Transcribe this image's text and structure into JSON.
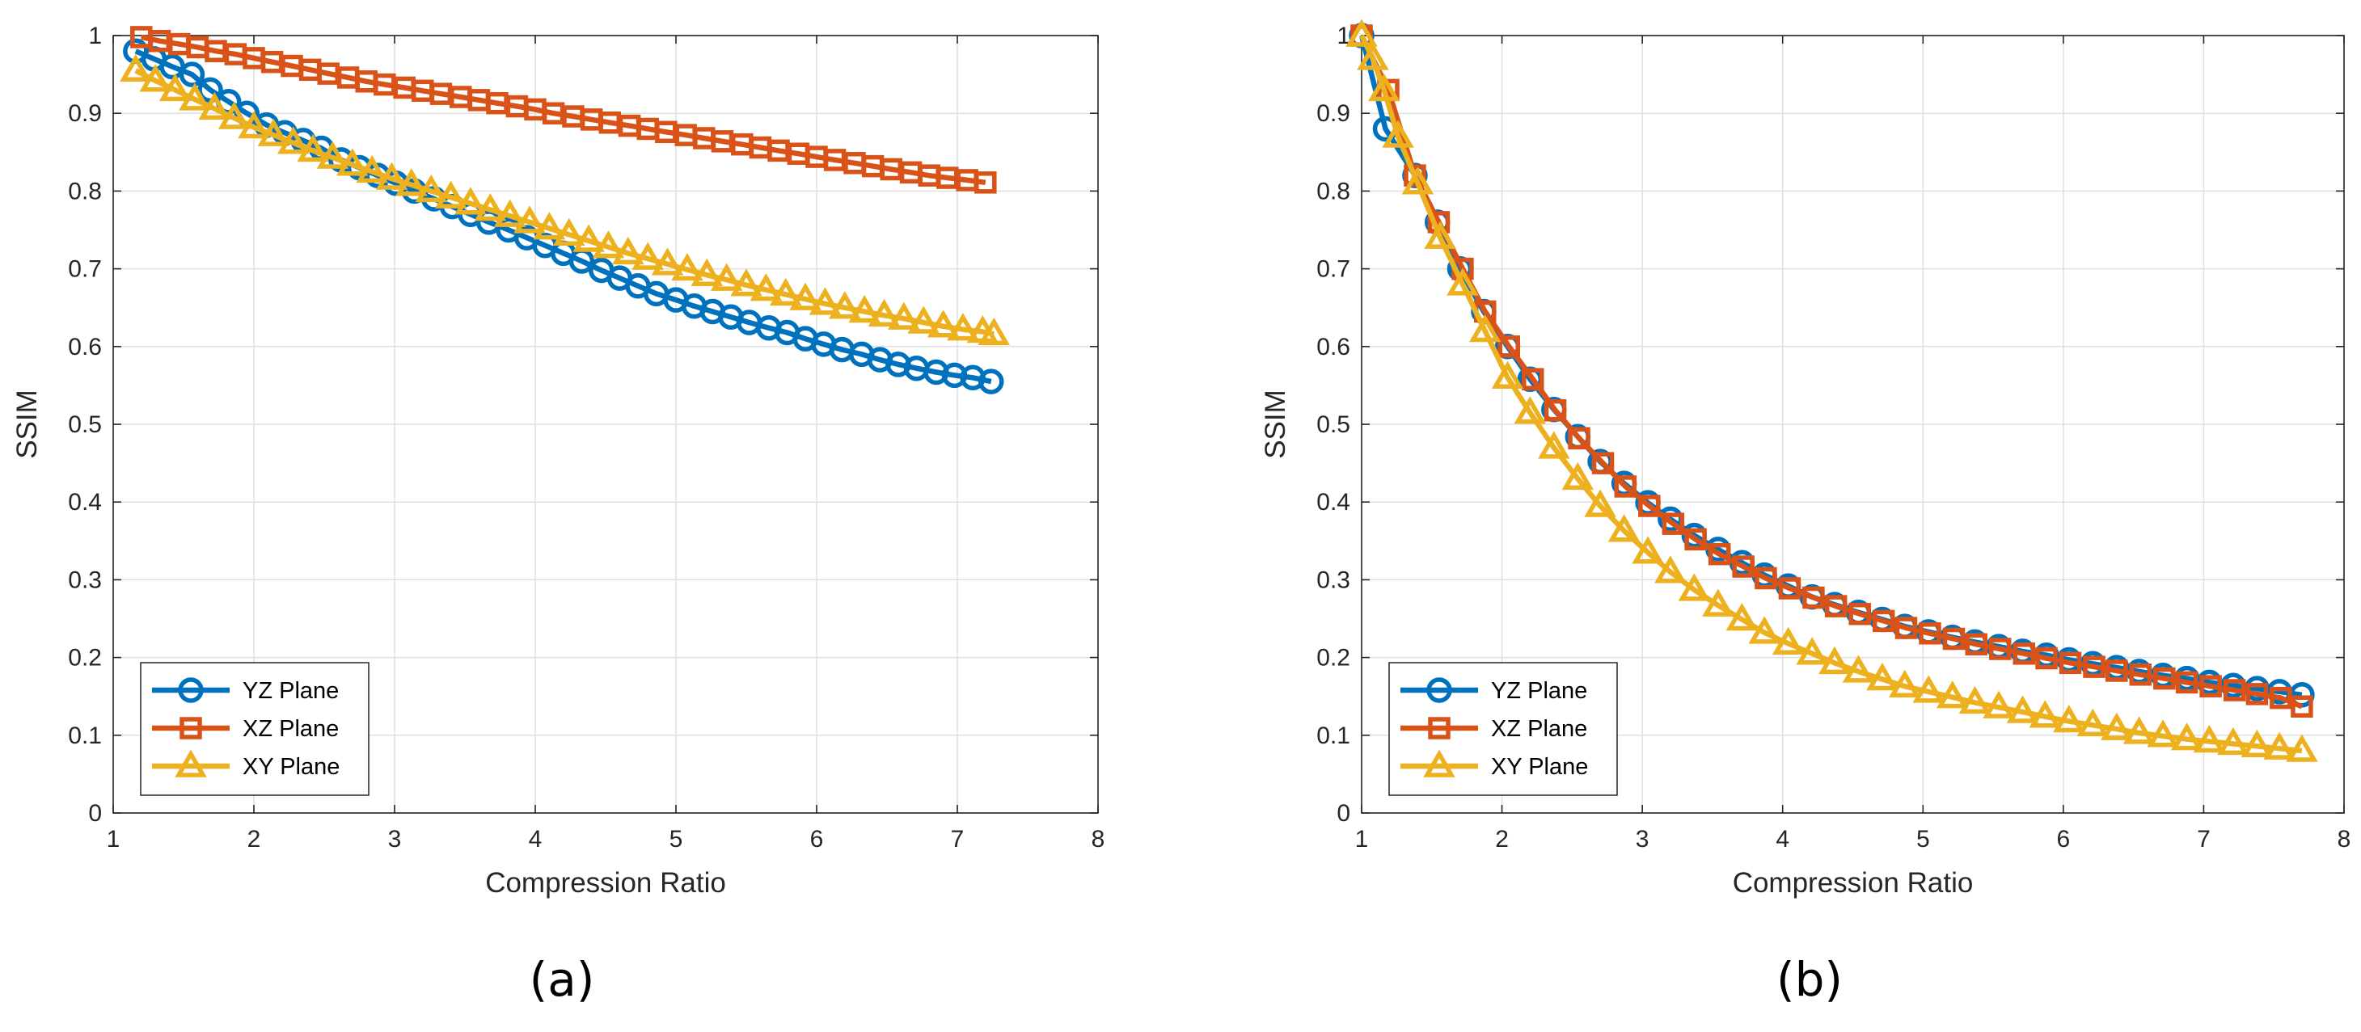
{
  "colors": {
    "yz": "#0072BD",
    "xz": "#D95319",
    "xy": "#EDB120",
    "grid": "#dfdfdf",
    "axis": "#262626"
  },
  "chart_data": [
    {
      "type": "line",
      "caption": "(a)",
      "xlabel": "Compression Ratio",
      "ylabel": "SSIM",
      "xlim": [
        1,
        8
      ],
      "ylim": [
        0,
        1
      ],
      "xticks": [
        "1",
        "2",
        "3",
        "4",
        "5",
        "6",
        "7",
        "8"
      ],
      "yticks": [
        "0",
        "0.1",
        "0.2",
        "0.3",
        "0.4",
        "0.5",
        "0.6",
        "0.7",
        "0.8",
        "0.9",
        "1"
      ],
      "grid": true,
      "legend": "bottom-left",
      "series": [
        {
          "name": "YZ Plane",
          "color_key": "yz",
          "marker": "circle",
          "x": [
            1.16,
            1.29,
            1.42,
            1.56,
            1.69,
            1.82,
            1.95,
            2.09,
            2.22,
            2.35,
            2.48,
            2.62,
            2.75,
            2.88,
            3.01,
            3.14,
            3.28,
            3.41,
            3.54,
            3.67,
            3.81,
            3.94,
            4.07,
            4.2,
            4.33,
            4.47,
            4.6,
            4.73,
            4.86,
            5.0,
            5.13,
            5.26,
            5.39,
            5.52,
            5.66,
            5.79,
            5.92,
            6.05,
            6.18,
            6.32,
            6.45,
            6.58,
            6.71,
            6.85,
            6.98,
            7.11,
            7.24
          ],
          "y": [
            0.98,
            0.97,
            0.96,
            0.95,
            0.93,
            0.915,
            0.9,
            0.885,
            0.875,
            0.865,
            0.855,
            0.84,
            0.83,
            0.82,
            0.81,
            0.8,
            0.79,
            0.78,
            0.77,
            0.76,
            0.75,
            0.74,
            0.73,
            0.72,
            0.71,
            0.698,
            0.688,
            0.678,
            0.668,
            0.66,
            0.652,
            0.645,
            0.638,
            0.631,
            0.624,
            0.618,
            0.61,
            0.603,
            0.596,
            0.59,
            0.583,
            0.577,
            0.572,
            0.567,
            0.563,
            0.56,
            0.555
          ]
        },
        {
          "name": "XZ Plane",
          "color_key": "xz",
          "marker": "square",
          "x": [
            1.2,
            1.33,
            1.47,
            1.6,
            1.73,
            1.87,
            2.0,
            2.13,
            2.27,
            2.4,
            2.53,
            2.67,
            2.8,
            2.93,
            3.07,
            3.2,
            3.33,
            3.47,
            3.6,
            3.73,
            3.87,
            4.0,
            4.13,
            4.27,
            4.4,
            4.53,
            4.67,
            4.8,
            4.93,
            5.07,
            5.2,
            5.33,
            5.47,
            5.6,
            5.73,
            5.87,
            6.0,
            6.13,
            6.27,
            6.4,
            6.53,
            6.67,
            6.8,
            6.93,
            7.07,
            7.2
          ],
          "y": [
            0.998,
            0.993,
            0.989,
            0.985,
            0.98,
            0.976,
            0.971,
            0.966,
            0.961,
            0.956,
            0.951,
            0.946,
            0.941,
            0.937,
            0.933,
            0.929,
            0.925,
            0.921,
            0.917,
            0.913,
            0.909,
            0.905,
            0.9,
            0.896,
            0.892,
            0.888,
            0.884,
            0.88,
            0.876,
            0.872,
            0.868,
            0.864,
            0.86,
            0.856,
            0.852,
            0.848,
            0.844,
            0.84,
            0.836,
            0.832,
            0.828,
            0.824,
            0.82,
            0.817,
            0.814,
            0.811
          ]
        },
        {
          "name": "XY Plane",
          "color_key": "xy",
          "marker": "triangle",
          "x": [
            1.16,
            1.3,
            1.44,
            1.58,
            1.72,
            1.86,
            2.0,
            2.14,
            2.28,
            2.42,
            2.56,
            2.7,
            2.84,
            2.98,
            3.12,
            3.26,
            3.4,
            3.54,
            3.68,
            3.82,
            3.96,
            4.1,
            4.24,
            4.38,
            4.52,
            4.66,
            4.8,
            4.94,
            5.08,
            5.22,
            5.36,
            5.5,
            5.64,
            5.78,
            5.92,
            6.06,
            6.2,
            6.34,
            6.48,
            6.62,
            6.76,
            6.9,
            7.04,
            7.18,
            7.26
          ],
          "y": [
            0.955,
            0.942,
            0.93,
            0.918,
            0.906,
            0.894,
            0.882,
            0.872,
            0.862,
            0.852,
            0.843,
            0.834,
            0.825,
            0.816,
            0.808,
            0.8,
            0.792,
            0.784,
            0.776,
            0.768,
            0.76,
            0.752,
            0.744,
            0.736,
            0.728,
            0.72,
            0.713,
            0.706,
            0.699,
            0.692,
            0.686,
            0.679,
            0.673,
            0.667,
            0.661,
            0.655,
            0.65,
            0.645,
            0.64,
            0.636,
            0.631,
            0.626,
            0.622,
            0.619,
            0.616
          ]
        }
      ]
    },
    {
      "type": "line",
      "caption": "(b)",
      "xlabel": "Compression Ratio",
      "ylabel": "SSIM",
      "xlim": [
        1,
        8
      ],
      "ylim": [
        0,
        1
      ],
      "xticks": [
        "1",
        "2",
        "3",
        "4",
        "5",
        "6",
        "7",
        "8"
      ],
      "yticks": [
        "0",
        "0.1",
        "0.2",
        "0.3",
        "0.4",
        "0.5",
        "0.6",
        "0.7",
        "0.8",
        "0.9",
        "1"
      ],
      "grid": true,
      "legend": "bottom-left",
      "series": [
        {
          "name": "YZ Plane",
          "color_key": "yz",
          "marker": "circle",
          "x": [
            1.0,
            1.17,
            1.38,
            1.54,
            1.7,
            1.87,
            2.04,
            2.2,
            2.37,
            2.54,
            2.7,
            2.87,
            3.04,
            3.2,
            3.37,
            3.54,
            3.71,
            3.87,
            4.04,
            4.21,
            4.37,
            4.54,
            4.71,
            4.87,
            5.04,
            5.21,
            5.37,
            5.54,
            5.71,
            5.88,
            6.04,
            6.21,
            6.38,
            6.54,
            6.71,
            6.88,
            7.04,
            7.21,
            7.38,
            7.54,
            7.7
          ],
          "y": [
            1.0,
            0.88,
            0.82,
            0.76,
            0.7,
            0.645,
            0.6,
            0.558,
            0.519,
            0.484,
            0.452,
            0.424,
            0.399,
            0.378,
            0.357,
            0.339,
            0.322,
            0.306,
            0.292,
            0.278,
            0.268,
            0.258,
            0.249,
            0.24,
            0.233,
            0.226,
            0.22,
            0.214,
            0.208,
            0.203,
            0.197,
            0.192,
            0.187,
            0.182,
            0.177,
            0.173,
            0.168,
            0.164,
            0.16,
            0.156,
            0.152
          ]
        },
        {
          "name": "XZ Plane",
          "color_key": "xz",
          "marker": "square",
          "x": [
            1.0,
            1.19,
            1.38,
            1.55,
            1.72,
            1.88,
            2.05,
            2.22,
            2.38,
            2.55,
            2.72,
            2.88,
            3.05,
            3.22,
            3.38,
            3.55,
            3.72,
            3.88,
            4.05,
            4.22,
            4.38,
            4.55,
            4.72,
            4.88,
            5.05,
            5.22,
            5.38,
            5.55,
            5.72,
            5.88,
            6.05,
            6.22,
            6.38,
            6.55,
            6.72,
            6.88,
            7.05,
            7.22,
            7.38,
            7.55,
            7.7
          ],
          "y": [
            1.0,
            0.93,
            0.82,
            0.76,
            0.7,
            0.645,
            0.6,
            0.558,
            0.518,
            0.482,
            0.45,
            0.42,
            0.395,
            0.372,
            0.352,
            0.333,
            0.317,
            0.302,
            0.289,
            0.277,
            0.266,
            0.256,
            0.247,
            0.238,
            0.231,
            0.224,
            0.217,
            0.211,
            0.205,
            0.199,
            0.193,
            0.188,
            0.183,
            0.178,
            0.173,
            0.168,
            0.163,
            0.158,
            0.153,
            0.148,
            0.137
          ]
        },
        {
          "name": "XY Plane",
          "color_key": "xy",
          "marker": "triangle",
          "x": [
            1.0,
            1.08,
            1.16,
            1.26,
            1.4,
            1.56,
            1.72,
            1.88,
            2.04,
            2.2,
            2.37,
            2.54,
            2.7,
            2.87,
            3.04,
            3.2,
            3.37,
            3.54,
            3.71,
            3.87,
            4.04,
            4.21,
            4.37,
            4.54,
            4.71,
            4.87,
            5.04,
            5.21,
            5.37,
            5.54,
            5.71,
            5.87,
            6.04,
            6.21,
            6.38,
            6.54,
            6.71,
            6.88,
            7.04,
            7.21,
            7.38,
            7.54,
            7.7
          ],
          "y": [
            1.0,
            0.97,
            0.93,
            0.87,
            0.81,
            0.74,
            0.68,
            0.62,
            0.56,
            0.515,
            0.47,
            0.43,
            0.395,
            0.363,
            0.335,
            0.31,
            0.287,
            0.267,
            0.249,
            0.232,
            0.218,
            0.205,
            0.193,
            0.182,
            0.172,
            0.163,
            0.156,
            0.149,
            0.142,
            0.136,
            0.13,
            0.124,
            0.118,
            0.113,
            0.108,
            0.103,
            0.099,
            0.095,
            0.092,
            0.089,
            0.086,
            0.083,
            0.08
          ]
        }
      ]
    }
  ]
}
